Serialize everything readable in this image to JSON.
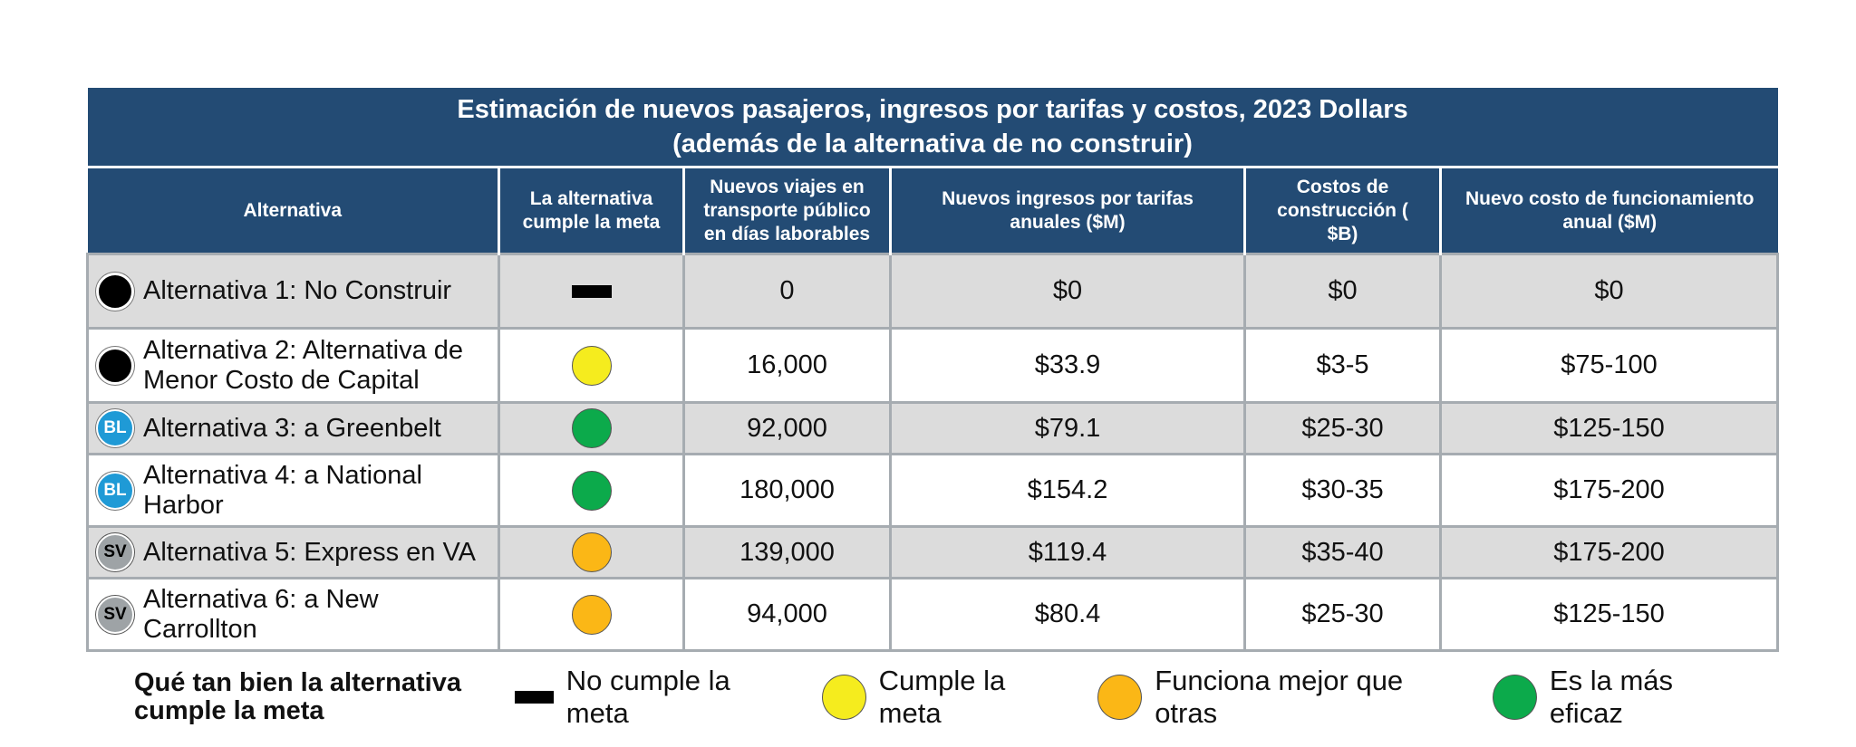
{
  "table": {
    "title_line1": "Estimación de nuevos pasajeros, ingresos por tarifas y costos, 2023 Dollars",
    "title_line2": "(además de la alternativa de no construir)",
    "headers": [
      "Alternativa",
      "La alternativa cumple la meta",
      "Nuevos viajes en transporte público en días laborables",
      "Nuevos ingresos por tarifas anuales ($M)",
      "Costos de construcción ( $B)",
      "Nuevo costo de funcionamiento anual  ($M)"
    ],
    "rows": [
      {
        "badge": "",
        "name": "Alternativa 1: No Construir",
        "trips": "0",
        "revenue": "$0",
        "construction": "$0",
        "operating": "$0"
      },
      {
        "badge": "",
        "name": "Alternativa 2: Alternativa de Menor Costo de Capital",
        "trips": "16,000",
        "revenue": "$33.9",
        "construction": "$3-5",
        "operating": "$75-100"
      },
      {
        "badge": "BL",
        "name": "Alternativa 3: a Greenbelt",
        "trips": "92,000",
        "revenue": "$79.1",
        "construction": "$25-30",
        "operating": "$125-150"
      },
      {
        "badge": "BL",
        "name": "Alternativa 4: a National Harbor",
        "trips": "180,000",
        "revenue": "$154.2",
        "construction": "$30-35",
        "operating": "$175-200"
      },
      {
        "badge": "SV",
        "name": "Alternativa 5: Express en VA",
        "trips": "139,000",
        "revenue": "$119.4",
        "construction": "$35-40",
        "operating": "$175-200"
      },
      {
        "badge": "SV",
        "name": "Alternativa 6: a New Carrollton",
        "trips": "94,000",
        "revenue": "$80.4",
        "construction": "$25-30",
        "operating": "$125-150"
      }
    ]
  },
  "legend": {
    "title": "Qué tan bien la alternativa cumple la meta",
    "items": [
      "No cumple la meta",
      "Cumple la meta",
      "Funciona mejor que otras",
      "Es la más eficaz"
    ]
  },
  "colors": {
    "header_bg": "#234b74",
    "meets": "#f5ec1e",
    "better": "#fbb716",
    "most_effective": "#0caa4b",
    "blue_line": "#1f9ad6",
    "silver_line": "#9ea3a6"
  }
}
